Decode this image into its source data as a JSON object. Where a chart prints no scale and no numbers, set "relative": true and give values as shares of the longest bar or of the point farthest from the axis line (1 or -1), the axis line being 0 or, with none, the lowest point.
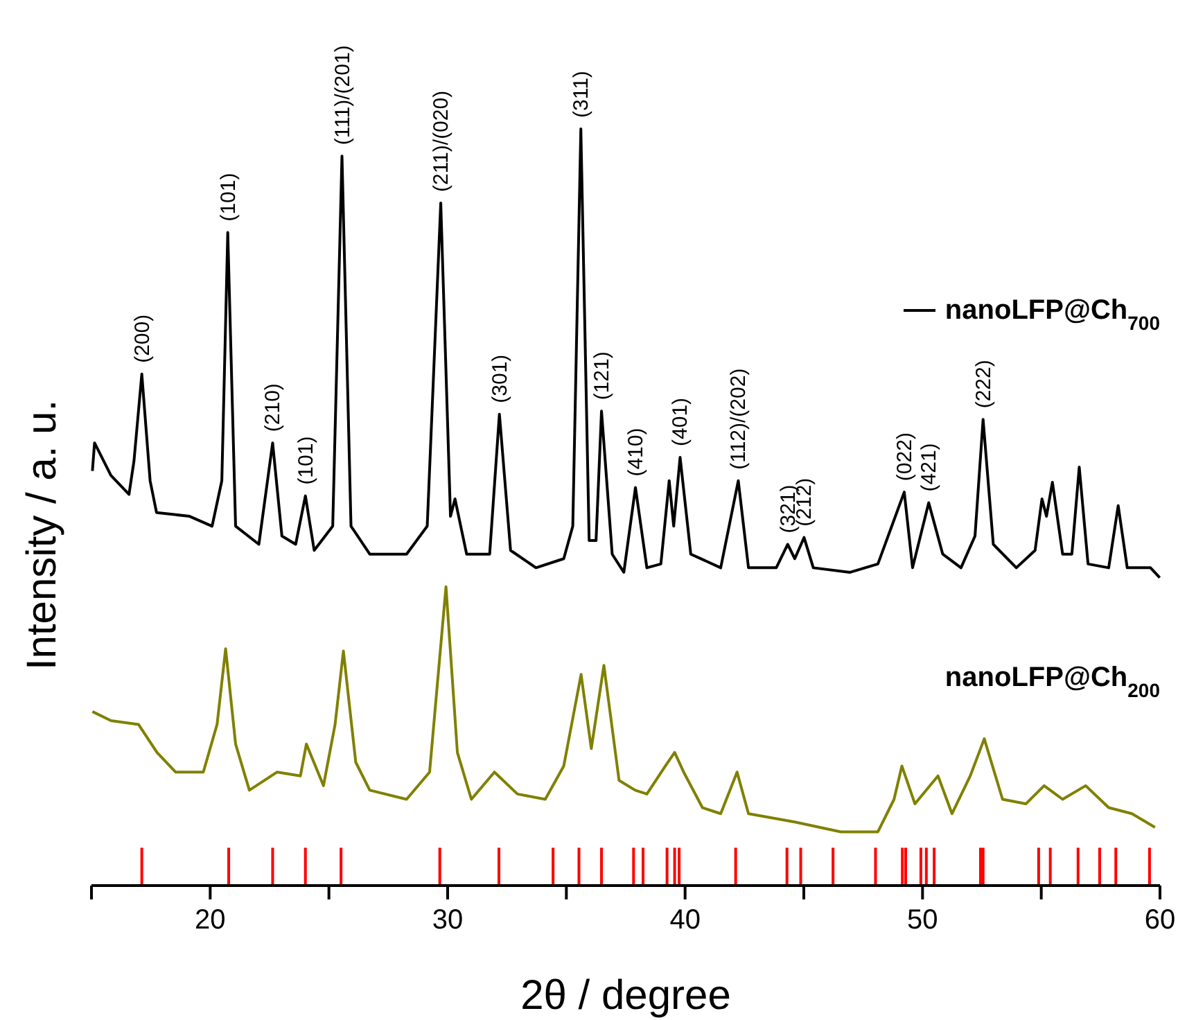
{
  "chart_data": {
    "type": "line",
    "relative": true,
    "xlabel": "2θ / degree",
    "ylabel": "Intensity / a. u.",
    "xlim": [
      15,
      60
    ],
    "xticks": [
      {
        "value": 15,
        "label": null
      },
      20,
      {
        "value": 25,
        "label": null
      },
      30,
      {
        "value": 35,
        "label": null
      },
      40,
      {
        "value": 45,
        "label": null
      },
      50,
      {
        "value": 55,
        "label": null
      },
      60
    ],
    "series": [
      {
        "name": "nanoLFP@Ch$_{700}$",
        "color": "#000000",
        "x": [
          15.04,
          15.13,
          15.82,
          16.58,
          16.79,
          17.12,
          17.47,
          17.74,
          19.13,
          20.08,
          20.49,
          20.74,
          21.07,
          22.05,
          22.63,
          23.02,
          23.6,
          24.01,
          24.38,
          25.16,
          25.55,
          25.93,
          26.72,
          28.27,
          29.14,
          29.71,
          30.12,
          30.31,
          30.8,
          31.77,
          32.18,
          32.65,
          33.72,
          34.89,
          35.27,
          35.61,
          35.96,
          36.25,
          36.48,
          36.93,
          37.42,
          37.91,
          38.39,
          38.98,
          39.33,
          39.52,
          39.79,
          40.24,
          41.5,
          42.24,
          42.67,
          43.84,
          44.32,
          44.62,
          45.01,
          45.4,
          46.95,
          48.12,
          49.23,
          49.58,
          50.26,
          50.85,
          51.62,
          52.21,
          52.55,
          52.98,
          53.95,
          54.74,
          55.03,
          55.22,
          55.47,
          55.9,
          56.29,
          56.6,
          56.97,
          57.84,
          58.24,
          58.62,
          59.6,
          59.99
        ],
        "values": [
          0.548,
          0.585,
          0.542,
          0.517,
          0.561,
          0.676,
          0.535,
          0.493,
          0.488,
          0.475,
          0.535,
          0.863,
          0.475,
          0.451,
          0.585,
          0.462,
          0.451,
          0.515,
          0.443,
          0.475,
          0.964,
          0.475,
          0.438,
          0.438,
          0.475,
          0.902,
          0.488,
          0.511,
          0.438,
          0.438,
          0.623,
          0.443,
          0.42,
          0.432,
          0.475,
          1,
          0.456,
          0.456,
          0.627,
          0.438,
          0.414,
          0.526,
          0.42,
          0.425,
          0.535,
          0.475,
          0.566,
          0.438,
          0.42,
          0.535,
          0.42,
          0.42,
          0.451,
          0.432,
          0.46,
          0.42,
          0.414,
          0.425,
          0.52,
          0.42,
          0.506,
          0.438,
          0.42,
          0.462,
          0.616,
          0.451,
          0.42,
          0.443,
          0.511,
          0.488,
          0.533,
          0.438,
          0.438,
          0.553,
          0.425,
          0.42,
          0.502,
          0.42,
          0.42,
          0.407
        ]
      },
      {
        "name": "nanoLFP@Ch$_{200}$",
        "color": "#808000",
        "x": [
          15.04,
          15.82,
          16.98,
          17.76,
          18.54,
          19.71,
          20.29,
          20.65,
          21.07,
          21.65,
          22.82,
          23.8,
          24.05,
          24.77,
          25.26,
          25.61,
          26.13,
          26.72,
          28.27,
          29.24,
          29.93,
          30.41,
          31.0,
          31.97,
          32.94,
          34.11,
          34.89,
          35.62,
          36.05,
          36.58,
          37.22,
          37.9,
          38.39,
          39.17,
          39.56,
          39.94,
          40.73,
          41.5,
          42.19,
          42.67,
          44.62,
          46.56,
          48.12,
          48.8,
          49.13,
          49.68,
          50.65,
          51.24,
          52.01,
          52.6,
          53.37,
          54.35,
          55.12,
          55.9,
          56.87,
          57.84,
          58.82,
          59.79
        ],
        "values": [
          0.23,
          0.218,
          0.213,
          0.176,
          0.15,
          0.15,
          0.213,
          0.313,
          0.187,
          0.126,
          0.15,
          0.145,
          0.187,
          0.132,
          0.213,
          0.31,
          0.163,
          0.126,
          0.114,
          0.15,
          0.395,
          0.176,
          0.114,
          0.15,
          0.121,
          0.114,
          0.158,
          0.279,
          0.181,
          0.291,
          0.139,
          0.126,
          0.121,
          0.158,
          0.176,
          0.15,
          0.103,
          0.095,
          0.15,
          0.095,
          0.084,
          0.071,
          0.071,
          0.114,
          0.158,
          0.108,
          0.145,
          0.095,
          0.145,
          0.194,
          0.114,
          0.108,
          0.132,
          0.114,
          0.132,
          0.103,
          0.095,
          0.077
        ]
      },
      {
        "type": "bar",
        "color": "#ff0000",
        "x": [
          17.12,
          20.78,
          22.63,
          24.01,
          25.51,
          29.67,
          32.16,
          34.44,
          35.53,
          36.48,
          37.83,
          38.23,
          39.24,
          39.56,
          39.75,
          42.13,
          44.29,
          44.87,
          46.23,
          48.02,
          49.15,
          49.29,
          49.93,
          50.16,
          50.49,
          52.44,
          52.55,
          54.89,
          55.38,
          56.55,
          57.46,
          58.14,
          59.56
        ],
        "values": [
          0.05,
          0.05,
          0.05,
          0.05,
          0.05,
          0.05,
          0.05,
          0.05,
          0.05,
          0.05,
          0.05,
          0.05,
          0.05,
          0.05,
          0.05,
          0.05,
          0.05,
          0.05,
          0.05,
          0.05,
          0.05,
          0.05,
          0.05,
          0.05,
          0.05,
          0.05,
          0.05,
          0.05,
          0.05,
          0.05,
          0.05,
          0.05,
          0.05
        ]
      }
    ],
    "annotations": [
      {
        "text": "(200)",
        "x": 17.12,
        "y": 0.676
      },
      {
        "text": "(101)",
        "x": 20.74,
        "y": 0.863
      },
      {
        "text": "(210)",
        "x": 22.63,
        "y": 0.585
      },
      {
        "text": "(101)",
        "x": 24.01,
        "y": 0.515
      },
      {
        "text": "(111)/(201)",
        "x": 25.55,
        "y": 0.964
      },
      {
        "text": "(211)/(020)",
        "x": 29.71,
        "y": 0.902
      },
      {
        "text": "(301)",
        "x": 32.18,
        "y": 0.623
      },
      {
        "text": "(311)",
        "x": 35.61,
        "y": 1
      },
      {
        "text": "(121)",
        "x": 36.48,
        "y": 0.627
      },
      {
        "text": "(410)",
        "x": 37.91,
        "y": 0.526
      },
      {
        "text": "(401)",
        "x": 39.79,
        "y": 0.566
      },
      {
        "text": "(112)/(202)",
        "x": 42.24,
        "y": 0.535
      },
      {
        "text": "(321)",
        "x": 44.32,
        "y": 0.451
      },
      {
        "text": "(212)",
        "x": 45.01,
        "y": 0.46
      },
      {
        "text": "(022)",
        "x": 49.23,
        "y": 0.52
      },
      {
        "text": "(421)",
        "x": 50.26,
        "y": 0.506
      },
      {
        "text": "(222)",
        "x": 52.55,
        "y": 0.616
      }
    ]
  }
}
